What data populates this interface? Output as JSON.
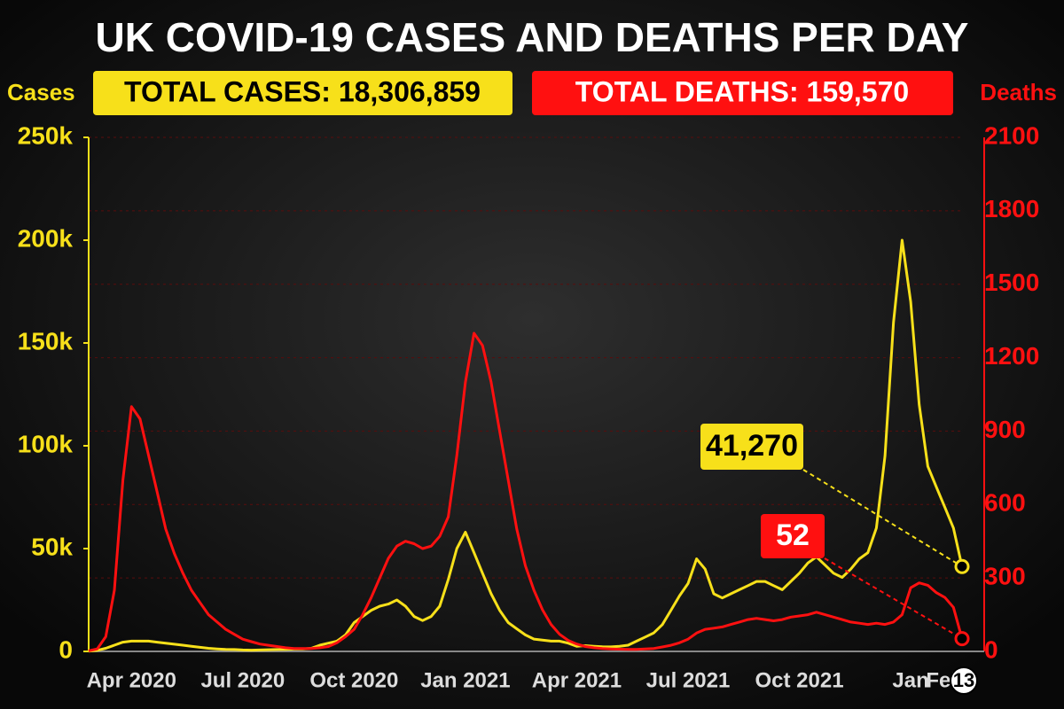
{
  "chart_data": {
    "type": "line",
    "title": "UK COVID-19 CASES AND DEATHS PER DAY",
    "ylabel": "Cases",
    "y2label": "Deaths",
    "annotations": [
      "TOTAL CASES:  18,306,859",
      "TOTAL DEATHS: 159,570"
    ],
    "categories": [
      null,
      null,
      null,
      null,
      null,
      "Apr 2020",
      null,
      null,
      null,
      null,
      null,
      null,
      null,
      null,
      null,
      null,
      null,
      null,
      "Jul 2020",
      null,
      null,
      null,
      null,
      null,
      null,
      null,
      null,
      null,
      null,
      null,
      null,
      "Oct 2020",
      null,
      null,
      null,
      null,
      null,
      null,
      null,
      null,
      null,
      null,
      null,
      null,
      "Jan 2021",
      null,
      null,
      null,
      null,
      null,
      null,
      null,
      null,
      null,
      null,
      null,
      null,
      "Apr 2021",
      null,
      null,
      null,
      null,
      null,
      null,
      null,
      null,
      null,
      null,
      null,
      null,
      "Jul 2021",
      null,
      null,
      null,
      null,
      null,
      null,
      null,
      null,
      null,
      null,
      null,
      null,
      "Oct 2021",
      null,
      null,
      null,
      null,
      null,
      null,
      null,
      null,
      null,
      null,
      null,
      null,
      "Jan",
      null,
      null,
      null,
      "Feb",
      null,
      "13"
    ],
    "series": [
      {
        "name": "Cases",
        "color": "#f7e01a",
        "values": [
          100,
          500,
          1500,
          3000,
          4500,
          5000,
          5000,
          5000,
          4500,
          4000,
          3500,
          3000,
          2500,
          2000,
          1500,
          1200,
          1000,
          900,
          700,
          600,
          700,
          800,
          900,
          1000,
          1100,
          1200,
          1500,
          3000,
          4000,
          5000,
          8000,
          14000,
          17000,
          20000,
          22000,
          23000,
          25000,
          22000,
          17000,
          15000,
          17000,
          22000,
          35000,
          50000,
          58000,
          48000,
          38000,
          28000,
          20000,
          14000,
          11000,
          8000,
          6000,
          5500,
          5000,
          5000,
          4000,
          2500,
          2800,
          2500,
          2300,
          2200,
          2500,
          3000,
          5000,
          7000,
          9000,
          13000,
          20000,
          27000,
          33000,
          45000,
          40000,
          28000,
          26000,
          28000,
          30000,
          32000,
          34000,
          34000,
          32000,
          30000,
          34000,
          38000,
          43000,
          46000,
          42000,
          38000,
          36000,
          40000,
          45000,
          48000,
          60000,
          95000,
          160000,
          200000,
          170000,
          120000,
          90000,
          80000,
          70000,
          60000,
          41270
        ],
        "value_labels": [
          null,
          null,
          null,
          null,
          null,
          null,
          null,
          null,
          null,
          null,
          null,
          null,
          null,
          null,
          null,
          null,
          null,
          null,
          null,
          null,
          null,
          null,
          null,
          null,
          null,
          null,
          null,
          null,
          null,
          null,
          null,
          null,
          null,
          null,
          null,
          null,
          null,
          null,
          null,
          null,
          null,
          null,
          null,
          null,
          null,
          null,
          null,
          null,
          null,
          null,
          null,
          null,
          null,
          null,
          null,
          null,
          null,
          null,
          null,
          null,
          null,
          null,
          null,
          null,
          null,
          null,
          null,
          null,
          null,
          null,
          null,
          null,
          null,
          null,
          null,
          null,
          null,
          null,
          null,
          null,
          null,
          null,
          null,
          null,
          null,
          null,
          null,
          null,
          null,
          null,
          null,
          null,
          null,
          null,
          null,
          null,
          null,
          null,
          null,
          null,
          null,
          null,
          "41,270"
        ]
      },
      {
        "name": "Deaths",
        "color": "#ff1010",
        "axis": "y2",
        "values": [
          2,
          10,
          60,
          250,
          700,
          1000,
          950,
          800,
          650,
          500,
          400,
          320,
          250,
          200,
          150,
          120,
          90,
          70,
          50,
          40,
          30,
          25,
          20,
          15,
          12,
          12,
          12,
          15,
          20,
          35,
          60,
          90,
          150,
          220,
          300,
          380,
          430,
          450,
          440,
          420,
          430,
          470,
          550,
          800,
          1100,
          1300,
          1250,
          1100,
          900,
          700,
          500,
          350,
          250,
          170,
          110,
          70,
          45,
          30,
          20,
          15,
          12,
          10,
          9,
          8,
          8,
          10,
          12,
          18,
          25,
          35,
          50,
          75,
          90,
          95,
          100,
          110,
          120,
          130,
          135,
          130,
          125,
          130,
          140,
          145,
          150,
          160,
          150,
          140,
          130,
          120,
          115,
          110,
          115,
          110,
          120,
          150,
          260,
          280,
          270,
          240,
          220,
          180,
          52
        ]
      }
    ],
    "ylim": [
      0,
      250000
    ],
    "yticks": [
      0,
      {
        "value": 50000,
        "label": "50k"
      },
      {
        "value": 100000,
        "label": "100k"
      },
      {
        "value": 150000,
        "label": "150k"
      },
      {
        "value": 200000,
        "label": "200k"
      },
      {
        "value": 250000,
        "label": "250k"
      }
    ],
    "y2lim": [
      0,
      2100
    ],
    "y2ticks": [
      0,
      300,
      600,
      900,
      1200,
      1500,
      1800,
      2100
    ],
    "grid": true
  }
}
